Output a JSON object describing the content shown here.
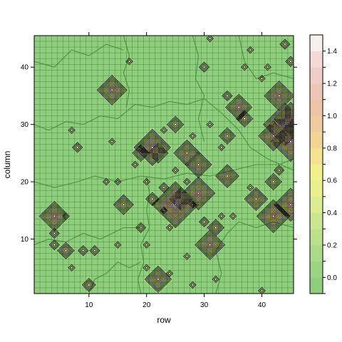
{
  "chart_data": {
    "type": "heatmap",
    "title": "",
    "xlabel": "row",
    "ylabel": "column",
    "xlim": [
      0.5,
      45.5
    ],
    "ylim": [
      0.5,
      45.5
    ],
    "grid_n": 45,
    "xticks": [
      10,
      20,
      30,
      40
    ],
    "yticks": [
      10,
      20,
      30,
      40
    ],
    "background_level": -0.1,
    "colorbar": {
      "levels": [
        -0.1,
        0.0,
        0.1,
        0.2,
        0.3,
        0.4,
        0.5,
        0.6,
        0.7,
        0.8,
        0.9,
        1.0,
        1.1,
        1.2,
        1.3,
        1.4,
        1.5
      ],
      "colors": [
        "#8fce7c",
        "#9dd483",
        "#abdb89",
        "#bbe18d",
        "#cbe691",
        "#dbec91",
        "#e9f08b",
        "#f2f08a",
        "#f3e28e",
        "#f2d595",
        "#f0cb9e",
        "#eec4a7",
        "#eec6b6",
        "#f0cdc6",
        "#f3dad6",
        "#f8f0ef"
      ],
      "tick_values": [
        -0.1,
        0.0,
        0.1,
        0.2,
        0.3,
        0.4,
        0.5,
        0.6,
        0.7,
        0.8,
        0.9,
        1.0,
        1.1,
        1.2,
        1.3,
        1.4
      ],
      "tick_labels": [
        "",
        "0.0",
        "",
        "0.2",
        "",
        "0.4",
        "",
        "0.6",
        "",
        "0.8",
        "",
        "1.0",
        "",
        "1.2",
        "",
        "1.4"
      ]
    },
    "contour_color": "#1a1a1a",
    "border_color": "#3d8a3a",
    "cell_line_color": "#2e6b2c",
    "peaks": [
      {
        "x": 4,
        "y": 14,
        "v": 0.9
      },
      {
        "x": 4,
        "y": 11,
        "v": 0.3
      },
      {
        "x": 4,
        "y": 9,
        "v": 0.3
      },
      {
        "x": 6,
        "y": 14,
        "v": 0.2
      },
      {
        "x": 6,
        "y": 8,
        "v": 0.5
      },
      {
        "x": 7,
        "y": 5,
        "v": 0.2
      },
      {
        "x": 7,
        "y": 29,
        "v": 0.2
      },
      {
        "x": 8,
        "y": 26,
        "v": 0.3
      },
      {
        "x": 9,
        "y": 8,
        "v": 0.3
      },
      {
        "x": 10,
        "y": 2,
        "v": 0.4
      },
      {
        "x": 11,
        "y": 8,
        "v": 0.3
      },
      {
        "x": 13,
        "y": 20,
        "v": 0.2
      },
      {
        "x": 14,
        "y": 27,
        "v": 0.2
      },
      {
        "x": 14,
        "y": 36,
        "v": 0.9
      },
      {
        "x": 15,
        "y": 20,
        "v": 0.2
      },
      {
        "x": 15,
        "y": 9,
        "v": 0.2
      },
      {
        "x": 16,
        "y": 16,
        "v": 0.6
      },
      {
        "x": 17,
        "y": 41,
        "v": 0.2
      },
      {
        "x": 18,
        "y": 23,
        "v": 0.2
      },
      {
        "x": 19,
        "y": 25,
        "v": 0.5
      },
      {
        "x": 19,
        "y": 12,
        "v": 0.3
      },
      {
        "x": 20,
        "y": 9,
        "v": 0.2
      },
      {
        "x": 20,
        "y": 5,
        "v": 0.2
      },
      {
        "x": 20,
        "y": 20,
        "v": 0.2
      },
      {
        "x": 21,
        "y": 17,
        "v": 0.4
      },
      {
        "x": 21,
        "y": 26,
        "v": 1.1
      },
      {
        "x": 22,
        "y": 3,
        "v": 0.8
      },
      {
        "x": 22,
        "y": 25,
        "v": 0.6
      },
      {
        "x": 23,
        "y": 15,
        "v": 0.2
      },
      {
        "x": 23,
        "y": 19,
        "v": 0.3
      },
      {
        "x": 23,
        "y": 29,
        "v": 0.2
      },
      {
        "x": 24,
        "y": 4,
        "v": 0.2
      },
      {
        "x": 24,
        "y": 12,
        "v": 0.2
      },
      {
        "x": 25,
        "y": 22,
        "v": 0.2
      },
      {
        "x": 25,
        "y": 30,
        "v": 0.5
      },
      {
        "x": 25,
        "y": 16,
        "v": 1.4
      },
      {
        "x": 26,
        "y": 17,
        "v": 0.7
      },
      {
        "x": 27,
        "y": 25,
        "v": 0.8
      },
      {
        "x": 27,
        "y": 20,
        "v": 0.2
      },
      {
        "x": 27,
        "y": 7,
        "v": 0.2
      },
      {
        "x": 28,
        "y": 28,
        "v": 0.2
      },
      {
        "x": 28,
        "y": 2,
        "v": 0.2
      },
      {
        "x": 28,
        "y": 16,
        "v": 0.2
      },
      {
        "x": 29,
        "y": 23,
        "v": 0.8
      },
      {
        "x": 29,
        "y": 18,
        "v": 1.0
      },
      {
        "x": 30,
        "y": 13,
        "v": 0.3
      },
      {
        "x": 30,
        "y": 40,
        "v": 0.3
      },
      {
        "x": 31,
        "y": 9,
        "v": 0.9
      },
      {
        "x": 31,
        "y": 45,
        "v": 0.2
      },
      {
        "x": 31,
        "y": 30,
        "v": 0.2
      },
      {
        "x": 32,
        "y": 12,
        "v": 0.5
      },
      {
        "x": 32,
        "y": 3,
        "v": 0.2
      },
      {
        "x": 33,
        "y": 14,
        "v": 0.2
      },
      {
        "x": 33,
        "y": 26,
        "v": 0.2
      },
      {
        "x": 34,
        "y": 21,
        "v": 0.7
      },
      {
        "x": 34,
        "y": 28,
        "v": 0.5
      },
      {
        "x": 34,
        "y": 35,
        "v": 0.3
      },
      {
        "x": 35,
        "y": 14,
        "v": 0.2
      },
      {
        "x": 36,
        "y": 33,
        "v": 0.8
      },
      {
        "x": 37,
        "y": 31,
        "v": 0.5
      },
      {
        "x": 37,
        "y": 40,
        "v": 0.2
      },
      {
        "x": 38,
        "y": 19,
        "v": 0.2
      },
      {
        "x": 38,
        "y": 43,
        "v": 0.2
      },
      {
        "x": 39,
        "y": 17,
        "v": 0.7
      },
      {
        "x": 40,
        "y": 38,
        "v": 0.2
      },
      {
        "x": 40,
        "y": 1,
        "v": 0.2
      },
      {
        "x": 41,
        "y": 40,
        "v": 0.2
      },
      {
        "x": 42,
        "y": 28,
        "v": 0.9
      },
      {
        "x": 42,
        "y": 20,
        "v": 0.5
      },
      {
        "x": 42,
        "y": 14,
        "v": 1.0
      },
      {
        "x": 43,
        "y": 35,
        "v": 0.9
      },
      {
        "x": 43,
        "y": 22,
        "v": 0.3
      },
      {
        "x": 44,
        "y": 30,
        "v": 1.3
      },
      {
        "x": 44,
        "y": 44,
        "v": 0.3
      },
      {
        "x": 45,
        "y": 27,
        "v": 1.2
      },
      {
        "x": 45,
        "y": 16,
        "v": 1.0
      },
      {
        "x": 45,
        "y": 31,
        "v": 1.0
      },
      {
        "x": 45,
        "y": 41,
        "v": 0.3
      }
    ]
  }
}
